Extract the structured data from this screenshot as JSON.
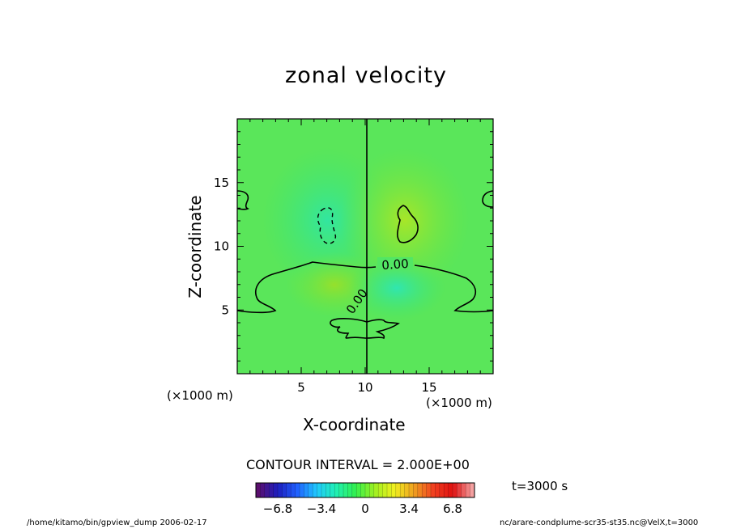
{
  "chart_data": {
    "type": "contour",
    "title": "zonal velocity",
    "xlabel": "X-coordinate",
    "ylabel": "Z-coordinate",
    "x_unit": "(×1000 m)",
    "y_unit": "(×1000 m)",
    "xlim": [
      0,
      20
    ],
    "ylim": [
      0,
      20
    ],
    "x_ticks": [
      5,
      10,
      15
    ],
    "y_ticks": [
      5,
      10,
      15
    ],
    "contour_interval_text": "CONTOUR INTERVAL = 2.000E+00",
    "contour_labels": [
      "0.00",
      "0.00"
    ],
    "colorbar": {
      "ticks": [
        "−6.8",
        "−3.4",
        "0",
        "3.4",
        "6.8"
      ],
      "range": [
        -8.5,
        8.5
      ],
      "colors": [
        "#5a0f6e",
        "#1e1ebe",
        "#2060ff",
        "#20c8ff",
        "#20f0b4",
        "#32f050",
        "#a0f020",
        "#f0f020",
        "#f0a020",
        "#f04020",
        "#e01010",
        "#f4a0a0"
      ]
    },
    "time_label": "t=3000 s",
    "field_extremes": [
      {
        "x": 7.0,
        "z": 12.0,
        "value": -2.4
      },
      {
        "x": 12.8,
        "z": 11.5,
        "value": 2.4
      },
      {
        "x": 7.5,
        "z": 7.0,
        "value": 1.5
      },
      {
        "x": 12.5,
        "z": 6.8,
        "value": -1.5
      }
    ]
  },
  "footer": {
    "left": "/home/kitamo/bin/gpview_dump  2006-02-17",
    "right": "nc/arare-condplume-scr35-st35.nc@VelX,t=3000"
  }
}
